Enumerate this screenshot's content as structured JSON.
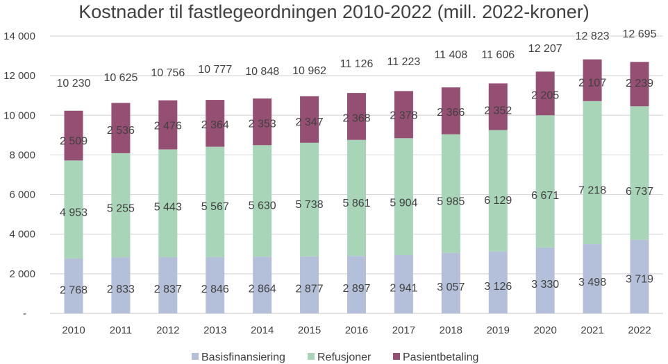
{
  "chart_data": {
    "type": "bar",
    "stacked": true,
    "title": "Kostnader til fastlegeordningen 2010-2022 (mill. 2022-kroner)",
    "xlabel": "",
    "ylabel": "",
    "ylim": [
      0,
      14000
    ],
    "grid": true,
    "legend_position": "bottom",
    "categories": [
      "2010",
      "2011",
      "2012",
      "2013",
      "2014",
      "2015",
      "2016",
      "2017",
      "2018",
      "2019",
      "2020",
      "2021",
      "2022"
    ],
    "y_ticks": [
      {
        "value": 0,
        "label": "-"
      },
      {
        "value": 2000,
        "label": "2 000"
      },
      {
        "value": 4000,
        "label": "4 000"
      },
      {
        "value": 6000,
        "label": "6 000"
      },
      {
        "value": 8000,
        "label": "8 000"
      },
      {
        "value": 10000,
        "label": "10 000"
      },
      {
        "value": 12000,
        "label": "12 000"
      },
      {
        "value": 14000,
        "label": "14 000"
      }
    ],
    "series": [
      {
        "name": "Basisfinansiering",
        "color": "#b4bfd9",
        "values": [
          2768,
          2833,
          2837,
          2846,
          2864,
          2877,
          2897,
          2941,
          3057,
          3126,
          3330,
          3498,
          3719
        ],
        "labels": [
          "2 768",
          "2 833",
          "2 837",
          "2 846",
          "2 864",
          "2 877",
          "2 897",
          "2 941",
          "3 057",
          "3 126",
          "3 330",
          "3 498",
          "3 719"
        ]
      },
      {
        "name": "Refusjoner",
        "color": "#a8d4b8",
        "values": [
          4953,
          5255,
          5443,
          5567,
          5630,
          5738,
          5861,
          5904,
          5985,
          6129,
          6671,
          7218,
          6737
        ],
        "labels": [
          "4 953",
          "5 255",
          "5 443",
          "5 567",
          "5 630",
          "5 738",
          "5 861",
          "5 904",
          "5 985",
          "6 129",
          "6 671",
          "7 218",
          "6 737"
        ]
      },
      {
        "name": "Pasientbetaling",
        "color": "#954f72",
        "values": [
          2509,
          2536,
          2476,
          2364,
          2353,
          2347,
          2368,
          2378,
          2366,
          2352,
          2205,
          2107,
          2239
        ],
        "labels": [
          "2 509",
          "2 536",
          "2 476",
          "2 364",
          "2 353",
          "2 347",
          "2 368",
          "2 378",
          "2 366",
          "2 352",
          "2 205",
          "2 107",
          "2 239"
        ]
      }
    ],
    "totals": {
      "values": [
        10230,
        10625,
        10756,
        10777,
        10848,
        10962,
        11126,
        11223,
        11408,
        11606,
        12207,
        12823,
        12695
      ],
      "labels": [
        "10 230",
        "10 625",
        "10 756",
        "10 777",
        "10 848",
        "10 962",
        "11 126",
        "11 223",
        "11 408",
        "11 606",
        "12 207",
        "12 823",
        "12 695"
      ]
    },
    "gridline_color": "#d9d9d9"
  }
}
